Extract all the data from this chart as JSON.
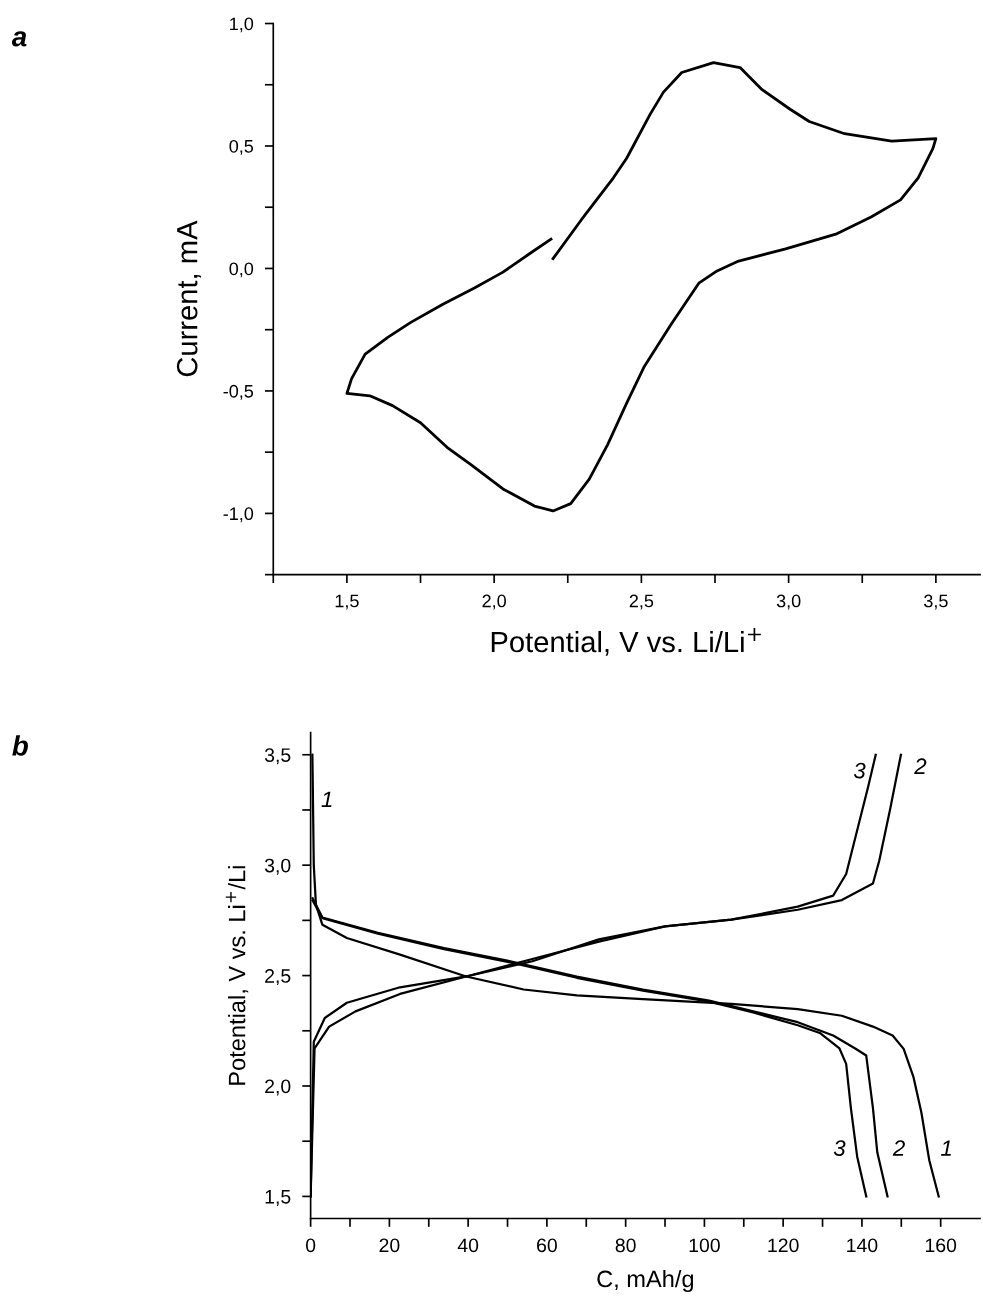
{
  "chart_data": [
    {
      "type": "line",
      "annotations": [
        "a"
      ],
      "xlabel": "Potential, V vs. Li/Li$^{+}$",
      "ylabel": "Current, mA",
      "xlim": [
        1.25,
        3.65
      ],
      "ylim": [
        -1.25,
        1.0
      ],
      "xticks": [
        {
          "value": 1.25,
          "label": null
        },
        {
          "value": 1.5,
          "label": "1,5"
        },
        {
          "value": 1.75,
          "label": null
        },
        {
          "value": 2.0,
          "label": "2,0"
        },
        {
          "value": 2.25,
          "label": null
        },
        {
          "value": 2.5,
          "label": "2,5"
        },
        {
          "value": 2.75,
          "label": null
        },
        {
          "value": 3.0,
          "label": "3,0"
        },
        {
          "value": 3.25,
          "label": null
        },
        {
          "value": 3.5,
          "label": "3,5"
        }
      ],
      "yticks": [
        {
          "value": -1.25,
          "label": null
        },
        {
          "value": -1.0,
          "label": "-1,0"
        },
        {
          "value": -0.75,
          "label": null
        },
        {
          "value": -0.5,
          "label": "-0,5"
        },
        {
          "value": -0.25,
          "label": null
        },
        {
          "value": 0.0,
          "label": "0,0"
        },
        {
          "value": 0.25,
          "label": null
        },
        {
          "value": 0.5,
          "label": "0,5"
        },
        {
          "value": 0.75,
          "label": null
        },
        {
          "value": 1.0,
          "label": "1,0"
        }
      ],
      "grid": false,
      "legend": false,
      "marker": "none",
      "line_style": "solid",
      "series": [
        {
          "color": "#000000",
          "x": [
            2.2,
            2.297,
            2.405,
            2.45,
            2.53,
            2.575,
            2.637,
            2.745,
            2.835,
            2.91,
            3.005,
            3.07,
            3.19,
            3.35,
            3.5,
            3.49,
            3.44,
            3.38,
            3.28,
            3.16,
            2.99,
            2.83,
            2.757,
            2.695,
            2.6,
            2.51,
            2.45,
            2.385,
            2.323,
            2.26,
            2.2,
            2.137,
            2.03,
            1.92,
            1.84,
            1.75,
            1.655,
            1.578,
            1.5,
            1.516,
            1.562,
            1.64,
            1.717,
            1.826,
            1.933,
            2.03,
            2.12,
            2.193
          ],
          "values": [
            0.04,
            0.2,
            0.37,
            0.45,
            0.63,
            0.72,
            0.8,
            0.84,
            0.82,
            0.73,
            0.65,
            0.6,
            0.55,
            0.52,
            0.53,
            0.49,
            0.37,
            0.28,
            0.21,
            0.14,
            0.08,
            0.03,
            -0.01,
            -0.06,
            -0.23,
            -0.4,
            -0.55,
            -0.72,
            -0.86,
            -0.96,
            -0.99,
            -0.97,
            -0.9,
            -0.8,
            -0.73,
            -0.63,
            -0.56,
            -0.52,
            -0.51,
            -0.45,
            -0.35,
            -0.28,
            -0.22,
            -0.146,
            -0.08,
            -0.015,
            0.06,
            0.12
          ]
        }
      ]
    },
    {
      "type": "line",
      "annotations": [
        "b",
        "1",
        "3",
        "2",
        "3",
        "2",
        "1"
      ],
      "xlabel": "C, mAh/g",
      "ylabel": "Potential, V vs. Li$^{+}$/Li",
      "xlim": [
        0,
        170
      ],
      "ylim": [
        1.4,
        3.6
      ],
      "xticks": [
        0,
        {
          "value": 10,
          "label": null
        },
        20,
        {
          "value": 30,
          "label": null
        },
        40,
        {
          "value": 50,
          "label": null
        },
        60,
        {
          "value": 70,
          "label": null
        },
        80,
        {
          "value": 90,
          "label": null
        },
        100,
        {
          "value": 110,
          "label": null
        },
        120,
        {
          "value": 130,
          "label": null
        },
        140,
        {
          "value": 150,
          "label": null
        },
        160
      ],
      "yticks": [
        {
          "value": 1.5,
          "label": "1,5"
        },
        {
          "value": 1.75,
          "label": null
        },
        {
          "value": 2.0,
          "label": "2,0"
        },
        {
          "value": 2.25,
          "label": null
        },
        {
          "value": 2.5,
          "label": "2,5"
        },
        {
          "value": 2.75,
          "label": null
        },
        {
          "value": 3.0,
          "label": "3,0"
        },
        {
          "value": 3.25,
          "label": null
        },
        {
          "value": 3.5,
          "label": "3,5"
        }
      ],
      "grid": false,
      "legend": false,
      "marker": "none",
      "line_style": "solid",
      "series": [
        {
          "color": "#000000",
          "x": [
            0.45,
            0.8,
            1.35,
            3.0,
            9.2,
            22.7,
            39.5,
            54.1,
            67.6,
            84.4,
            106.8,
            123.7,
            134.9,
            142.8,
            147.8,
            150.6,
            153.1,
            155.1,
            157.1,
            159.5
          ],
          "values": [
            3.5,
            3.0,
            2.82,
            2.73,
            2.67,
            2.595,
            2.496,
            2.437,
            2.41,
            2.393,
            2.372,
            2.348,
            2.318,
            2.269,
            2.229,
            2.168,
            2.04,
            1.88,
            1.664,
            1.5
          ]
        },
        {
          "color": "#000000",
          "x": [
            0.5,
            3.0,
            17.1,
            33.9,
            50.7,
            67.6,
            84.4,
            101.2,
            112.4,
            123.7,
            132.7,
            138.3,
            141.1,
            142.8,
            143.9,
            146.5
          ],
          "values": [
            2.85,
            2.763,
            2.694,
            2.624,
            2.565,
            2.496,
            2.437,
            2.387,
            2.338,
            2.289,
            2.229,
            2.17,
            2.138,
            1.9,
            1.7,
            1.5
          ]
        },
        {
          "color": "#000000",
          "x": [
            0.5,
            3.0,
            17.1,
            33.9,
            50.7,
            67.6,
            84.4,
            101.2,
            112.4,
            123.7,
            129.3,
            134.3,
            136.0,
            137.2,
            138.8,
            141.1
          ],
          "values": [
            2.84,
            2.76,
            2.69,
            2.62,
            2.56,
            2.49,
            2.432,
            2.382,
            2.333,
            2.275,
            2.24,
            2.17,
            2.1,
            1.9,
            1.68,
            1.5
          ]
        },
        {
          "color": "#000000",
          "x": [
            0,
            1.0,
            4.7,
            11.4,
            22.7,
            39.5,
            56.3,
            73.2,
            90.0,
            106.8,
            123.7,
            134.9,
            142.8,
            144.4,
            147.2,
            149.9
          ],
          "values": [
            1.5,
            2.17,
            2.269,
            2.338,
            2.417,
            2.496,
            2.575,
            2.654,
            2.723,
            2.753,
            2.798,
            2.842,
            2.917,
            3.02,
            3.257,
            3.5
          ]
        },
        {
          "color": "#000000",
          "x": [
            0,
            0.8,
            3.6,
            9.2,
            22.7,
            39.5,
            56.3,
            73.2,
            90.0,
            106.8,
            123.7,
            132.7,
            136.0,
            138.8,
            141.6,
            143.5
          ],
          "values": [
            1.5,
            2.2,
            2.308,
            2.377,
            2.447,
            2.496,
            2.565,
            2.664,
            2.723,
            2.753,
            2.812,
            2.862,
            2.96,
            3.158,
            3.356,
            3.5
          ]
        }
      ]
    }
  ]
}
